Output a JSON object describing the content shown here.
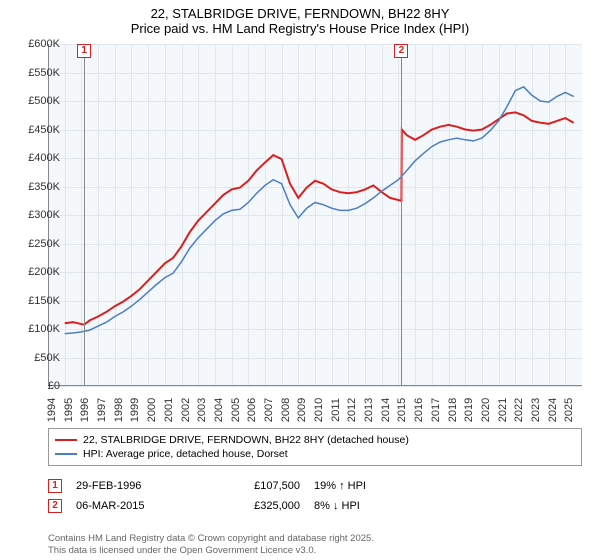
{
  "title_main": "22, STALBRIDGE DRIVE, FERNDOWN, BH22 8HY",
  "title_sub": "Price paid vs. HM Land Registry's House Price Index (HPI)",
  "chart": {
    "type": "line",
    "xlim": [
      1994,
      2026
    ],
    "ylim": [
      0,
      600000
    ],
    "x_ticks": [
      1994,
      1995,
      1996,
      1997,
      1998,
      1999,
      2000,
      2001,
      2002,
      2003,
      2004,
      2005,
      2006,
      2007,
      2008,
      2009,
      2010,
      2011,
      2012,
      2013,
      2014,
      2015,
      2016,
      2017,
      2018,
      2019,
      2020,
      2021,
      2022,
      2023,
      2024,
      2025
    ],
    "y_ticks": [
      0,
      50000,
      100000,
      150000,
      200000,
      250000,
      300000,
      350000,
      400000,
      450000,
      500000,
      550000,
      600000
    ],
    "y_tick_labels": [
      "£0",
      "£50K",
      "£100K",
      "£150K",
      "£200K",
      "£250K",
      "£300K",
      "£350K",
      "£400K",
      "£450K",
      "£500K",
      "£550K",
      "£600K"
    ],
    "background_color": "#f4f8fb",
    "grid_color": "#e0e6eb",
    "series": [
      {
        "name": "price_paid",
        "color": "#d92020",
        "width": 2,
        "data": [
          [
            1995.0,
            110000
          ],
          [
            1995.5,
            112000
          ],
          [
            1996.17,
            107500
          ],
          [
            1996.5,
            115000
          ],
          [
            1997.0,
            122000
          ],
          [
            1997.5,
            130000
          ],
          [
            1998.0,
            140000
          ],
          [
            1998.5,
            148000
          ],
          [
            1999.0,
            158000
          ],
          [
            1999.5,
            170000
          ],
          [
            2000.0,
            185000
          ],
          [
            2000.5,
            200000
          ],
          [
            2001.0,
            215000
          ],
          [
            2001.5,
            225000
          ],
          [
            2002.0,
            245000
          ],
          [
            2002.5,
            270000
          ],
          [
            2003.0,
            290000
          ],
          [
            2003.5,
            305000
          ],
          [
            2004.0,
            320000
          ],
          [
            2004.5,
            335000
          ],
          [
            2005.0,
            345000
          ],
          [
            2005.5,
            348000
          ],
          [
            2006.0,
            360000
          ],
          [
            2006.5,
            378000
          ],
          [
            2007.0,
            392000
          ],
          [
            2007.5,
            405000
          ],
          [
            2008.0,
            398000
          ],
          [
            2008.5,
            355000
          ],
          [
            2009.0,
            330000
          ],
          [
            2009.5,
            348000
          ],
          [
            2010.0,
            360000
          ],
          [
            2010.5,
            355000
          ],
          [
            2011.0,
            345000
          ],
          [
            2011.5,
            340000
          ],
          [
            2012.0,
            338000
          ],
          [
            2012.5,
            340000
          ],
          [
            2013.0,
            345000
          ],
          [
            2013.5,
            352000
          ],
          [
            2014.0,
            340000
          ],
          [
            2014.5,
            330000
          ],
          [
            2015.18,
            325000
          ],
          [
            2015.2,
            450000
          ],
          [
            2015.5,
            440000
          ],
          [
            2016.0,
            432000
          ],
          [
            2016.5,
            440000
          ],
          [
            2017.0,
            450000
          ],
          [
            2017.5,
            455000
          ],
          [
            2018.0,
            458000
          ],
          [
            2018.5,
            455000
          ],
          [
            2019.0,
            450000
          ],
          [
            2019.5,
            448000
          ],
          [
            2020.0,
            450000
          ],
          [
            2020.5,
            458000
          ],
          [
            2021.0,
            468000
          ],
          [
            2021.5,
            478000
          ],
          [
            2022.0,
            480000
          ],
          [
            2022.5,
            475000
          ],
          [
            2023.0,
            465000
          ],
          [
            2023.5,
            462000
          ],
          [
            2024.0,
            460000
          ],
          [
            2024.5,
            465000
          ],
          [
            2025.0,
            470000
          ],
          [
            2025.5,
            462000
          ]
        ]
      },
      {
        "name": "hpi",
        "color": "#4a7ec6",
        "width": 1.5,
        "data": [
          [
            1995.0,
            92000
          ],
          [
            1995.5,
            93000
          ],
          [
            1996.0,
            95000
          ],
          [
            1996.5,
            98000
          ],
          [
            1997.0,
            105000
          ],
          [
            1997.5,
            112000
          ],
          [
            1998.0,
            122000
          ],
          [
            1998.5,
            130000
          ],
          [
            1999.0,
            140000
          ],
          [
            1999.5,
            152000
          ],
          [
            2000.0,
            165000
          ],
          [
            2000.5,
            178000
          ],
          [
            2001.0,
            190000
          ],
          [
            2001.5,
            198000
          ],
          [
            2002.0,
            218000
          ],
          [
            2002.5,
            242000
          ],
          [
            2003.0,
            260000
          ],
          [
            2003.5,
            275000
          ],
          [
            2004.0,
            290000
          ],
          [
            2004.5,
            302000
          ],
          [
            2005.0,
            308000
          ],
          [
            2005.5,
            310000
          ],
          [
            2006.0,
            322000
          ],
          [
            2006.5,
            338000
          ],
          [
            2007.0,
            352000
          ],
          [
            2007.5,
            362000
          ],
          [
            2008.0,
            355000
          ],
          [
            2008.5,
            318000
          ],
          [
            2009.0,
            295000
          ],
          [
            2009.5,
            312000
          ],
          [
            2010.0,
            322000
          ],
          [
            2010.5,
            318000
          ],
          [
            2011.0,
            312000
          ],
          [
            2011.5,
            308000
          ],
          [
            2012.0,
            308000
          ],
          [
            2012.5,
            312000
          ],
          [
            2013.0,
            320000
          ],
          [
            2013.5,
            330000
          ],
          [
            2014.0,
            342000
          ],
          [
            2014.5,
            352000
          ],
          [
            2015.0,
            362000
          ],
          [
            2015.5,
            378000
          ],
          [
            2016.0,
            395000
          ],
          [
            2016.5,
            408000
          ],
          [
            2017.0,
            420000
          ],
          [
            2017.5,
            428000
          ],
          [
            2018.0,
            432000
          ],
          [
            2018.5,
            435000
          ],
          [
            2019.0,
            432000
          ],
          [
            2019.5,
            430000
          ],
          [
            2020.0,
            435000
          ],
          [
            2020.5,
            448000
          ],
          [
            2021.0,
            465000
          ],
          [
            2021.5,
            490000
          ],
          [
            2022.0,
            518000
          ],
          [
            2022.5,
            525000
          ],
          [
            2023.0,
            510000
          ],
          [
            2023.5,
            500000
          ],
          [
            2024.0,
            498000
          ],
          [
            2024.5,
            508000
          ],
          [
            2025.0,
            515000
          ],
          [
            2025.5,
            508000
          ]
        ]
      }
    ],
    "markers": [
      {
        "n": "1",
        "year": 1996.17,
        "color": "#d92020"
      },
      {
        "n": "2",
        "year": 2015.18,
        "color": "#d92020"
      }
    ]
  },
  "legend": [
    {
      "color": "#d92020",
      "label": "22, STALBRIDGE DRIVE, FERNDOWN, BH22 8HY (detached house)"
    },
    {
      "color": "#4a7ec6",
      "label": "HPI: Average price, detached house, Dorset"
    }
  ],
  "table": [
    {
      "n": "1",
      "color": "#d92020",
      "date": "29-FEB-1996",
      "price": "£107,500",
      "pct": "19% ↑ HPI"
    },
    {
      "n": "2",
      "color": "#d92020",
      "date": "06-MAR-2015",
      "price": "£325,000",
      "pct": "8% ↓ HPI"
    }
  ],
  "footer1": "Contains HM Land Registry data © Crown copyright and database right 2025.",
  "footer2": "This data is licensed under the Open Government Licence v3.0."
}
